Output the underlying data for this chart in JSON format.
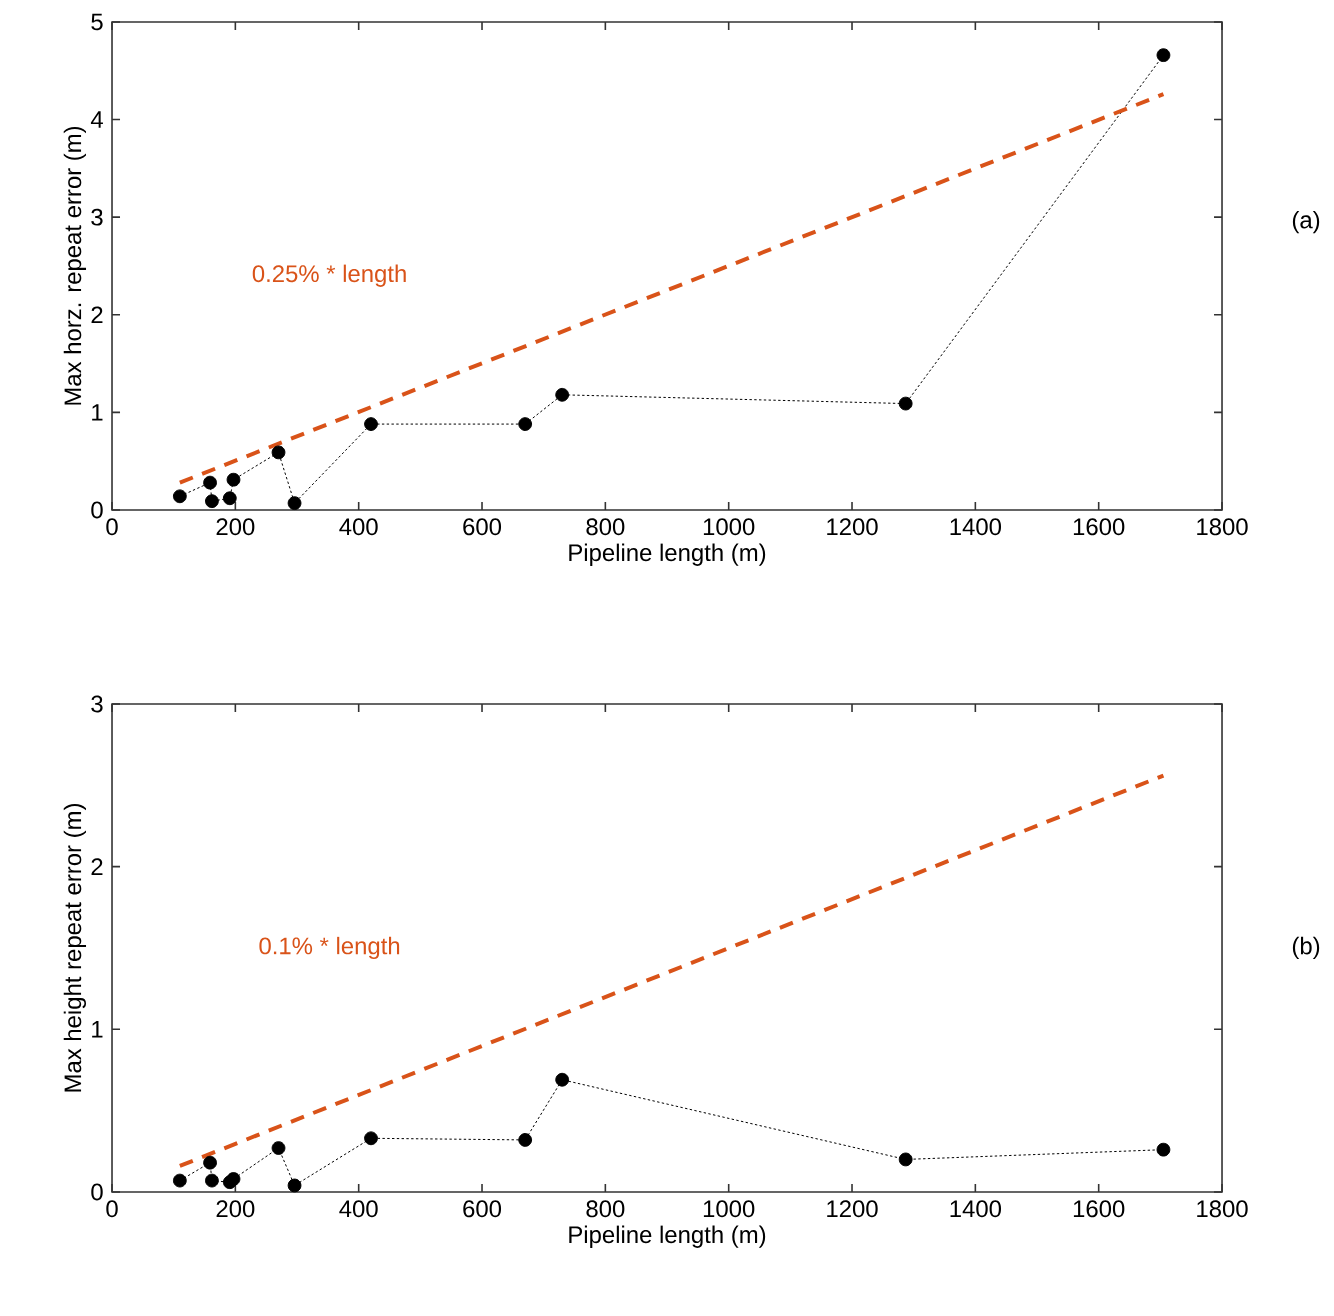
{
  "chart_data": [
    {
      "type": "line",
      "xlabel": "Pipeline length (m)",
      "ylabel": "Max horz. repeat error (m)",
      "xlim": [
        0,
        1800
      ],
      "xticks": [
        0,
        200,
        400,
        600,
        800,
        1000,
        1200,
        1400,
        1600,
        1800
      ],
      "ylim": [
        0,
        5
      ],
      "yticks": [
        0,
        1,
        2,
        3,
        4,
        5
      ],
      "series": [
        {
          "color": "#000000",
          "marker": "circle",
          "line_style": "dotted",
          "x": [
            110,
            159,
            162,
            191,
            197,
            270,
            296,
            420,
            670,
            730,
            1287,
            1705
          ],
          "values": [
            0.14,
            0.28,
            0.09,
            0.12,
            0.31,
            0.59,
            0.07,
            0.88,
            0.88,
            1.18,
            1.09,
            4.66
          ]
        },
        {
          "color": "#d95319",
          "marker": "none",
          "line_style": "dashed",
          "x": [
            110,
            1705
          ],
          "values": [
            0.28,
            4.26
          ]
        }
      ],
      "annotations": [
        "0.25% * length",
        "(a)"
      ]
    },
    {
      "type": "line",
      "xlabel": "Pipeline length (m)",
      "ylabel": "Max height repeat error (m)",
      "xlim": [
        0,
        1800
      ],
      "xticks": [
        0,
        200,
        400,
        600,
        800,
        1000,
        1200,
        1400,
        1600,
        1800
      ],
      "ylim": [
        0,
        3
      ],
      "yticks": [
        0,
        1,
        2,
        3
      ],
      "series": [
        {
          "color": "#000000",
          "marker": "circle",
          "line_style": "dotted",
          "x": [
            110,
            159,
            162,
            191,
            197,
            270,
            296,
            420,
            670,
            730,
            1287,
            1705
          ],
          "values": [
            0.07,
            0.18,
            0.07,
            0.06,
            0.08,
            0.27,
            0.04,
            0.33,
            0.32,
            0.69,
            0.2,
            0.26
          ]
        },
        {
          "color": "#d95319",
          "marker": "none",
          "line_style": "dashed",
          "x": [
            110,
            1705
          ],
          "values": [
            0.16,
            2.56
          ]
        }
      ],
      "annotations": [
        "0.1% * length",
        "(b)"
      ]
    }
  ]
}
